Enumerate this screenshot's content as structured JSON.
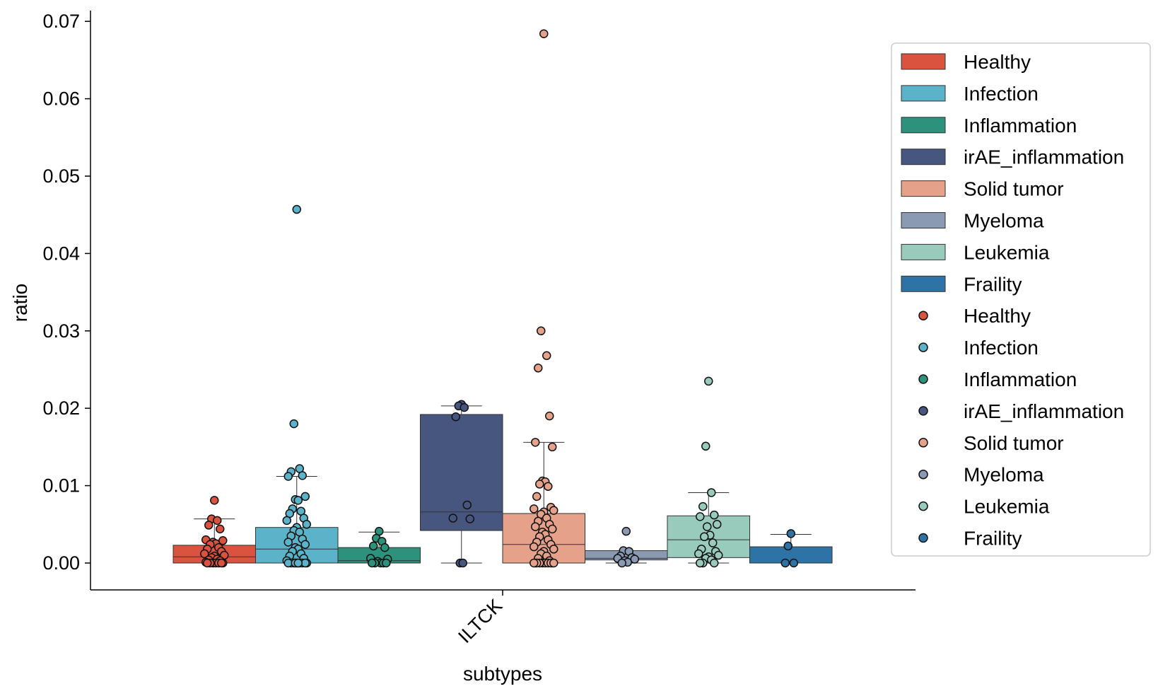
{
  "chart_data": {
    "type": "box",
    "xlabel": "subtypes",
    "ylabel": "ratio",
    "ylim": [
      -0.0035,
      0.072
    ],
    "y_ticks": [
      "0.00",
      "0.01",
      "0.02",
      "0.03",
      "0.04",
      "0.05",
      "0.06",
      "0.07"
    ],
    "y_tick_values": [
      0,
      0.01,
      0.02,
      0.03,
      0.04,
      0.05,
      0.06,
      0.07
    ],
    "categories": [
      "ILTCK"
    ],
    "legend_position": "right",
    "series": [
      {
        "name": "Healthy",
        "color": "#D9533F",
        "box": {
          "q1": 0.0,
          "median": 0.0008,
          "q3": 0.0023,
          "whisker_low": 0.0,
          "whisker_high": 0.0057
        },
        "points": [
          0.0081,
          0.0057,
          0.0055,
          0.0049,
          0.0044,
          0.003,
          0.0029,
          0.0027,
          0.0025,
          0.0024,
          0.002,
          0.0018,
          0.0015,
          0.0012,
          0.001,
          0.0009,
          0.0007,
          0.0005,
          0.0004,
          0.0003,
          0.0001,
          0.0,
          0.0,
          0.0,
          0.0,
          0.0,
          0.0,
          0.0
        ]
      },
      {
        "name": "Infection",
        "color": "#5BB3C9",
        "box": {
          "q1": 0.0,
          "median": 0.0018,
          "q3": 0.0046,
          "whisker_low": 0.0,
          "whisker_high": 0.0112
        },
        "points": [
          0.0457,
          0.018,
          0.0122,
          0.0118,
          0.0113,
          0.0112,
          0.0086,
          0.0082,
          0.0081,
          0.007,
          0.0067,
          0.0064,
          0.0058,
          0.0055,
          0.005,
          0.0046,
          0.0042,
          0.004,
          0.0035,
          0.0031,
          0.0027,
          0.0024,
          0.002,
          0.0018,
          0.0015,
          0.0012,
          0.0009,
          0.0006,
          0.0003,
          0.0,
          0.0,
          0.0,
          0.0,
          0.0,
          0.0,
          0.0,
          0.0,
          0.0,
          0.0
        ]
      },
      {
        "name": "Inflammation",
        "color": "#2C927C",
        "box": {
          "q1": 0.0,
          "median": 0.0003,
          "q3": 0.002,
          "whisker_low": 0.0,
          "whisker_high": 0.004
        },
        "points": [
          0.0041,
          0.0032,
          0.0028,
          0.0022,
          0.002,
          0.0006,
          0.0005,
          0.0002,
          0.0,
          0.0,
          0.0,
          0.0,
          0.0
        ]
      },
      {
        "name": "irAE_inflammation",
        "color": "#46567E",
        "box": {
          "q1": 0.0042,
          "median": 0.0066,
          "q3": 0.0192,
          "whisker_low": 0.0,
          "whisker_high": 0.0203
        },
        "points": [
          0.0205,
          0.0203,
          0.0201,
          0.0189,
          0.0075,
          0.0058,
          0.0057,
          0.0,
          0.0
        ]
      },
      {
        "name": "Solid tumor",
        "color": "#E5A18A",
        "box": {
          "q1": 0.0,
          "median": 0.0024,
          "q3": 0.0064,
          "whisker_low": 0.0,
          "whisker_high": 0.0156
        },
        "points": [
          0.0684,
          0.03,
          0.0268,
          0.0252,
          0.019,
          0.0156,
          0.015,
          0.0106,
          0.0105,
          0.0102,
          0.0099,
          0.0086,
          0.0072,
          0.007,
          0.0068,
          0.0066,
          0.0063,
          0.0058,
          0.0054,
          0.005,
          0.0047,
          0.0044,
          0.004,
          0.0037,
          0.0034,
          0.003,
          0.0027,
          0.0024,
          0.0021,
          0.0018,
          0.0015,
          0.0012,
          0.0009,
          0.0006,
          0.0003,
          0.0,
          0.0,
          0.0,
          0.0,
          0.0,
          0.0,
          0.0,
          0.0,
          0.0,
          0.0
        ]
      },
      {
        "name": "Myeloma",
        "color": "#8A9AB3",
        "box": {
          "q1": 0.0004,
          "median": 0.0006,
          "q3": 0.0016,
          "whisker_low": 0.0,
          "whisker_high": 0.0016
        },
        "points": [
          0.0041,
          0.0016,
          0.0015,
          0.0009,
          0.0007,
          0.0006,
          0.0005,
          0.0003,
          0.0001,
          0.0
        ]
      },
      {
        "name": "Leukemia",
        "color": "#99CBBD",
        "box": {
          "q1": 0.0007,
          "median": 0.003,
          "q3": 0.0061,
          "whisker_low": 0.0,
          "whisker_high": 0.0091
        },
        "points": [
          0.0235,
          0.0151,
          0.0091,
          0.0073,
          0.0062,
          0.006,
          0.005,
          0.0047,
          0.0036,
          0.0034,
          0.0026,
          0.0018,
          0.0015,
          0.0012,
          0.001,
          0.0008,
          0.0006,
          0.0004,
          0.0,
          0.0,
          0.0
        ]
      },
      {
        "name": "Fraility",
        "color": "#2E73A6",
        "box": {
          "q1": 0.0,
          "median": 0.0,
          "q3": 0.0021,
          "whisker_low": 0.0,
          "whisker_high": 0.0037
        },
        "points": [
          0.0038,
          0.0022,
          0.0,
          0.0
        ]
      }
    ]
  }
}
